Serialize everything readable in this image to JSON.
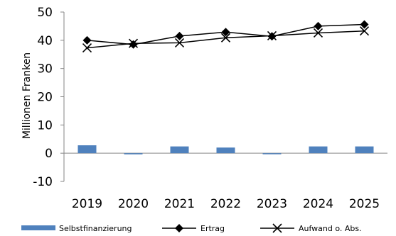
{
  "chart_data": {
    "type": "bar+line",
    "categories": [
      "2019",
      "2020",
      "2021",
      "2022",
      "2023",
      "2024",
      "2025"
    ],
    "ylabel": "Millionen Franken",
    "ylim": [
      -10,
      50
    ],
    "yticks": [
      -10,
      0,
      10,
      20,
      30,
      40,
      50
    ],
    "grid": false,
    "legend_position": "bottom",
    "series": [
      {
        "name": "Selbstfinanzierung",
        "kind": "bar",
        "color": "#4F81BD",
        "values": [
          2.8,
          -0.4,
          2.4,
          2.0,
          -0.2,
          2.4,
          2.4
        ]
      },
      {
        "name": "Ertrag",
        "kind": "line",
        "marker": "diamond",
        "color": "#000000",
        "values": [
          40.0,
          38.5,
          41.5,
          42.9,
          41.4,
          45.0,
          45.6
        ]
      },
      {
        "name": "Aufwand o. Abs.",
        "kind": "line",
        "marker": "x",
        "color": "#000000",
        "values": [
          37.3,
          38.9,
          39.1,
          40.9,
          41.6,
          42.6,
          43.3
        ]
      }
    ]
  }
}
